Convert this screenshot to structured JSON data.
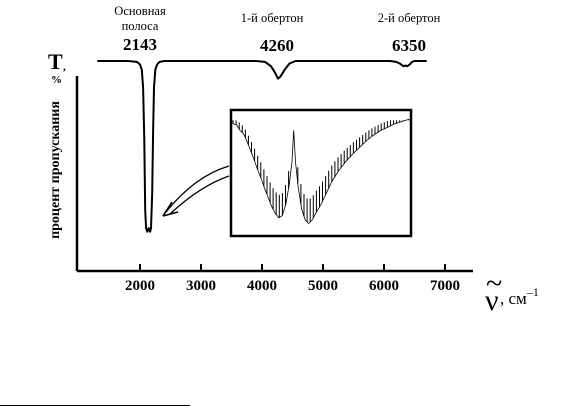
{
  "chart_data": {
    "type": "line",
    "title": "",
    "ylabel": "процент пропускания",
    "y_symbol": "T",
    "y_symbol_comma": ",",
    "y_unit": "%",
    "x_symbol": "ν",
    "x_tilde": "~",
    "x_unit": ",  см",
    "x_unit_exponent": "–1",
    "xlim": [
      1250,
      7000
    ],
    "ylim": [
      0,
      100
    ],
    "x_ticks": [
      2000,
      3000,
      4000,
      5000,
      6000,
      7000
    ],
    "x_tick_labels": [
      "2000",
      "3000",
      "4000",
      "5000",
      "6000",
      "7000"
    ],
    "grid": false,
    "peaks": [
      {
        "name_lines": [
          "Основная",
          "полоса"
        ],
        "value": "2143",
        "x": 2143,
        "min_y": 3
      },
      {
        "name_lines": [
          "1-й обертон"
        ],
        "value": "4260",
        "x": 4260,
        "min_y": 90
      },
      {
        "name_lines": [
          "2-й обертон"
        ],
        "value": "6350",
        "x": 6350,
        "min_y": 97
      }
    ],
    "series": [
      {
        "x": [
          1500,
          1800,
          1950,
          2000,
          2030,
          2050,
          2070,
          2085,
          2100,
          2120,
          2143,
          2165,
          2180,
          2200,
          2215,
          2230,
          2250,
          2280,
          2320,
          2400,
          2600,
          3000,
          3500,
          3900,
          4050,
          4150,
          4220,
          4260,
          4300,
          4370,
          4450,
          4550,
          4800,
          5200,
          5600,
          5900,
          6100,
          6200,
          6260,
          6300,
          6330,
          6350,
          6380,
          6420,
          6460,
          6500,
          6600,
          6700
        ],
        "y": [
          100,
          100,
          99.5,
          98,
          95,
          85,
          55,
          15,
          5,
          3,
          5,
          3,
          5,
          25,
          60,
          85,
          95,
          98,
          99.5,
          100,
          100,
          100,
          100,
          100,
          99.5,
          97,
          93,
          90,
          91,
          95,
          98.5,
          100,
          100,
          100,
          100,
          100,
          100,
          99.5,
          98.5,
          97.5,
          97,
          97.5,
          97,
          98,
          99.5,
          100,
          100,
          100
        ]
      }
    ],
    "inset": {
      "type": "line",
      "description_none": "",
      "points": [
        [
          0,
          0.06
        ],
        [
          0.02,
          0.07
        ],
        [
          0.04,
          0.12
        ],
        [
          0.06,
          0.15
        ],
        [
          0.08,
          0.22
        ],
        [
          0.1,
          0.3
        ],
        [
          0.12,
          0.38
        ],
        [
          0.14,
          0.47
        ],
        [
          0.16,
          0.55
        ],
        [
          0.18,
          0.64
        ],
        [
          0.2,
          0.72
        ],
        [
          0.22,
          0.8
        ],
        [
          0.24,
          0.86
        ],
        [
          0.26,
          0.9
        ],
        [
          0.28,
          0.88
        ],
        [
          0.3,
          0.78
        ],
        [
          0.32,
          0.6
        ],
        [
          0.335,
          0.4
        ],
        [
          0.345,
          0.12
        ],
        [
          0.355,
          0.4
        ],
        [
          0.37,
          0.62
        ],
        [
          0.39,
          0.82
        ],
        [
          0.41,
          0.92
        ],
        [
          0.43,
          0.95
        ],
        [
          0.45,
          0.92
        ],
        [
          0.47,
          0.86
        ],
        [
          0.5,
          0.78
        ],
        [
          0.53,
          0.68
        ],
        [
          0.56,
          0.58
        ],
        [
          0.6,
          0.48
        ],
        [
          0.64,
          0.4
        ],
        [
          0.68,
          0.33
        ],
        [
          0.72,
          0.27
        ],
        [
          0.76,
          0.21
        ],
        [
          0.8,
          0.16
        ],
        [
          0.84,
          0.12
        ],
        [
          0.88,
          0.09
        ],
        [
          0.92,
          0.06
        ],
        [
          0.96,
          0.04
        ],
        [
          1,
          0.02
        ]
      ]
    }
  }
}
